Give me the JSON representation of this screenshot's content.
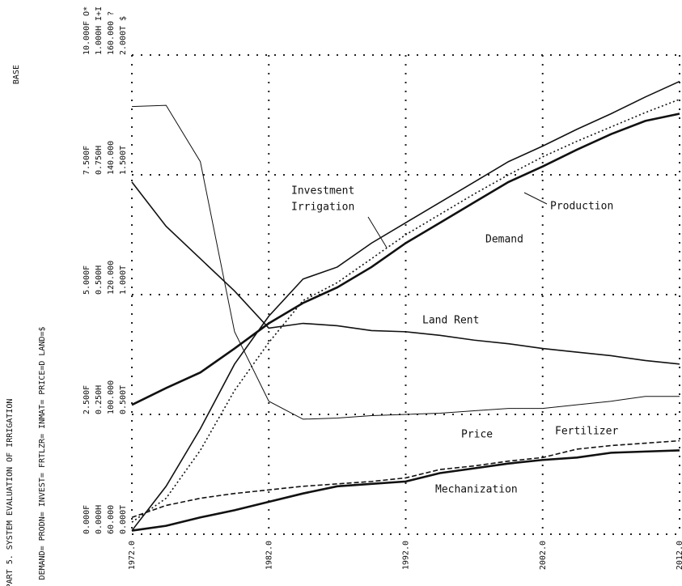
{
  "chart_data": {
    "type": "line",
    "captions": [
      "PART 5. SYSTEM EVALUATION OF IRRIGATION",
      "DEMAND= PRODN= INVEST= FRTLZR= INMAT= PRICE=D LAND=$",
      "BASE"
    ],
    "x": [
      1972,
      1974.5,
      1977,
      1979.5,
      1982,
      1984.5,
      1987,
      1989.5,
      1992,
      1994.5,
      1997,
      1999.5,
      2002,
      2004.5,
      2007,
      2009.5,
      2012
    ],
    "xlim": [
      1972,
      2012
    ],
    "xticks": [
      {
        "value": 1972,
        "label": "1972.0"
      },
      {
        "value": 1982,
        "label": "1982.0"
      },
      {
        "value": 1992,
        "label": "1992.0"
      },
      {
        "value": 2002,
        "label": "2002.0"
      },
      {
        "value": 2012,
        "label": "2012.0"
      }
    ],
    "ylim": [
      0,
      4
    ],
    "yticks": [
      0,
      1,
      2,
      3,
      4
    ],
    "ytick_labels": [
      [
        "0.000T",
        "60.000",
        "0.000H",
        "0.000F"
      ],
      [
        "0.500T",
        "100.000",
        "0.250H",
        "2.500F"
      ],
      [
        "1.000T",
        "120.000",
        "0.500H",
        "5.000F"
      ],
      [
        "1.500T",
        "140.000",
        "0.750H",
        "7.500F"
      ],
      [
        "2.000T $",
        "160.000 ?",
        "1.000H I+I",
        "10.000F O*"
      ]
    ],
    "grid": true,
    "annotations": [
      "Irrigation"
    ],
    "series": [
      {
        "name": "Production",
        "color": "#111111",
        "style": "solid",
        "values": [
          0.03,
          0.4,
          0.88,
          1.42,
          1.82,
          2.13,
          2.23,
          2.43,
          2.6,
          2.77,
          2.94,
          3.11,
          3.24,
          3.38,
          3.51,
          3.65,
          3.78
        ]
      },
      {
        "name": "Demand",
        "color": "#111111",
        "style": "thick",
        "values": [
          1.08,
          1.22,
          1.35,
          1.55,
          1.76,
          1.93,
          2.06,
          2.23,
          2.43,
          2.6,
          2.77,
          2.94,
          3.07,
          3.21,
          3.34,
          3.45,
          3.51
        ]
      },
      {
        "name": "Investment",
        "color": "#111111",
        "style": "dotted",
        "values": [
          0.1,
          0.3,
          0.7,
          1.2,
          1.6,
          1.95,
          2.1,
          2.3,
          2.5,
          2.67,
          2.84,
          3.0,
          3.15,
          3.28,
          3.4,
          3.52,
          3.63
        ]
      },
      {
        "name": "Price",
        "color": "#111111",
        "style": "thin",
        "values": [
          3.57,
          3.58,
          3.11,
          1.69,
          1.11,
          0.96,
          0.97,
          0.99,
          1.0,
          1.01,
          1.03,
          1.05,
          1.05,
          1.08,
          1.11,
          1.15,
          1.15
        ]
      },
      {
        "name": "Land Rent",
        "color": "#111111",
        "style": "solid",
        "values": [
          2.94,
          2.57,
          2.3,
          2.03,
          1.72,
          1.76,
          1.74,
          1.7,
          1.69,
          1.66,
          1.62,
          1.59,
          1.55,
          1.52,
          1.49,
          1.45,
          1.42
        ]
      },
      {
        "name": "Fertilizer",
        "color": "#111111",
        "style": "dashed",
        "values": [
          0.14,
          0.24,
          0.3,
          0.34,
          0.37,
          0.4,
          0.42,
          0.44,
          0.47,
          0.54,
          0.57,
          0.61,
          0.64,
          0.71,
          0.74,
          0.76,
          0.78
        ]
      },
      {
        "name": "Mechanization",
        "color": "#111111",
        "style": "thick",
        "values": [
          0.03,
          0.07,
          0.14,
          0.2,
          0.27,
          0.34,
          0.4,
          0.42,
          0.44,
          0.51,
          0.55,
          0.59,
          0.62,
          0.64,
          0.68,
          0.69,
          0.7
        ]
      }
    ]
  }
}
